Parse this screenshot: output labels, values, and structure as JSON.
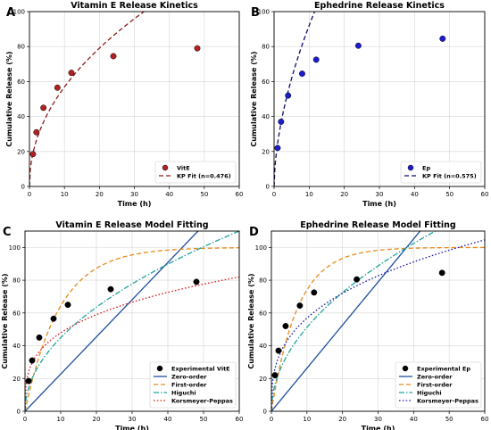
{
  "chart_data": [
    {
      "panel_label": "A",
      "type": "scatter",
      "title": "Vitamin E Release Kinetics",
      "xlabel": "Time (h)",
      "ylabel": "Cumulative Release (%)",
      "xlim": [
        0,
        60
      ],
      "ylim": [
        0,
        100
      ],
      "xticks": [
        0,
        10,
        20,
        30,
        40,
        50,
        60
      ],
      "yticks": [
        0,
        20,
        40,
        60,
        80,
        100
      ],
      "grid": true,
      "legend_position": "lower-right",
      "series": [
        {
          "name": "VitE",
          "kind": "points",
          "color": "#b22222",
          "x": [
            1,
            2,
            4,
            8,
            12,
            24,
            48
          ],
          "y": [
            18.5,
            31,
            45,
            56.5,
            65,
            74.5,
            79
          ]
        },
        {
          "name": "KP Fit (n=0.476)",
          "kind": "kp",
          "color": "#8b1a1a",
          "dash": "dash",
          "k": 19.0,
          "n": 0.476
        }
      ]
    },
    {
      "panel_label": "B",
      "type": "scatter",
      "title": "Ephedrine Release Kinetics",
      "xlabel": "Time (h)",
      "ylabel": "Cumulative Release (%)",
      "xlim": [
        0,
        60
      ],
      "ylim": [
        0,
        100
      ],
      "xticks": [
        0,
        10,
        20,
        30,
        40,
        50,
        60
      ],
      "yticks": [
        0,
        20,
        40,
        60,
        80,
        100
      ],
      "grid": true,
      "legend_position": "lower-right",
      "series": [
        {
          "name": "Ep",
          "kind": "points",
          "color": "#1c1ccd",
          "x": [
            1,
            2,
            4,
            8,
            12,
            24,
            48
          ],
          "y": [
            22,
            37,
            52,
            64.5,
            72.5,
            80.5,
            84.5
          ]
        },
        {
          "name": "KP Fit (n=0.575)",
          "kind": "kp",
          "color": "#0d0d6b",
          "dash": "dash",
          "k": 24.5,
          "n": 0.575
        }
      ]
    },
    {
      "panel_label": "C",
      "type": "line",
      "title": "Vitamin E Release Model Fitting",
      "xlabel": "Time (h)",
      "ylabel": "Cumulative Release (%)",
      "xlim": [
        0,
        60
      ],
      "ylim": [
        0,
        110
      ],
      "xticks": [
        0,
        10,
        20,
        30,
        40,
        50,
        60
      ],
      "yticks": [
        0,
        20,
        40,
        60,
        80,
        100
      ],
      "grid": true,
      "legend_position": "lower-right",
      "series": [
        {
          "name": "Experimental VitE",
          "kind": "points",
          "color": "#000000",
          "x": [
            1,
            2,
            4,
            8,
            12,
            24,
            48
          ],
          "y": [
            18.5,
            31,
            45,
            56.5,
            65,
            74.5,
            79
          ]
        },
        {
          "name": "Zero-order",
          "kind": "zero",
          "color": "#1f4e9c",
          "dash": "solid",
          "k": 2.27
        },
        {
          "name": "First-order",
          "kind": "first",
          "color": "#e8891c",
          "dash": "dash",
          "k": 0.103
        },
        {
          "name": "Higuchi",
          "kind": "higuchi",
          "color": "#20a39a",
          "dash": "dashdot",
          "k": 14.2
        },
        {
          "name": "Korsmeyer-Peppas",
          "kind": "kp",
          "color": "#e0191e",
          "dash": "dot",
          "k": 24.0,
          "n": 0.3
        }
      ]
    },
    {
      "panel_label": "D",
      "type": "line",
      "title": "Ephedrine Release Model Fitting",
      "xlabel": "Time (h)",
      "ylabel": "Cumulative Release (%)",
      "xlim": [
        0,
        60
      ],
      "ylim": [
        0,
        110
      ],
      "xticks": [
        0,
        10,
        20,
        30,
        40,
        50,
        60
      ],
      "yticks": [
        0,
        20,
        40,
        60,
        80,
        100
      ],
      "grid": true,
      "legend_position": "lower-right",
      "series": [
        {
          "name": "Experimental Ep",
          "kind": "points",
          "color": "#000000",
          "x": [
            1,
            2,
            4,
            8,
            12,
            24,
            48
          ],
          "y": [
            22,
            37,
            52,
            64.5,
            72.5,
            80.5,
            84.5
          ]
        },
        {
          "name": "Zero-order",
          "kind": "zero",
          "color": "#1f4e9c",
          "dash": "solid",
          "k": 2.63
        },
        {
          "name": "First-order",
          "kind": "first",
          "color": "#e8891c",
          "dash": "dash",
          "k": 0.135
        },
        {
          "name": "Higuchi",
          "kind": "higuchi",
          "color": "#20a39a",
          "dash": "dashdot",
          "k": 16.2
        },
        {
          "name": "Korsmeyer-Peppas",
          "kind": "kp",
          "color": "#1c1ca8",
          "dash": "dot",
          "k": 26.0,
          "n": 0.34
        }
      ]
    }
  ]
}
